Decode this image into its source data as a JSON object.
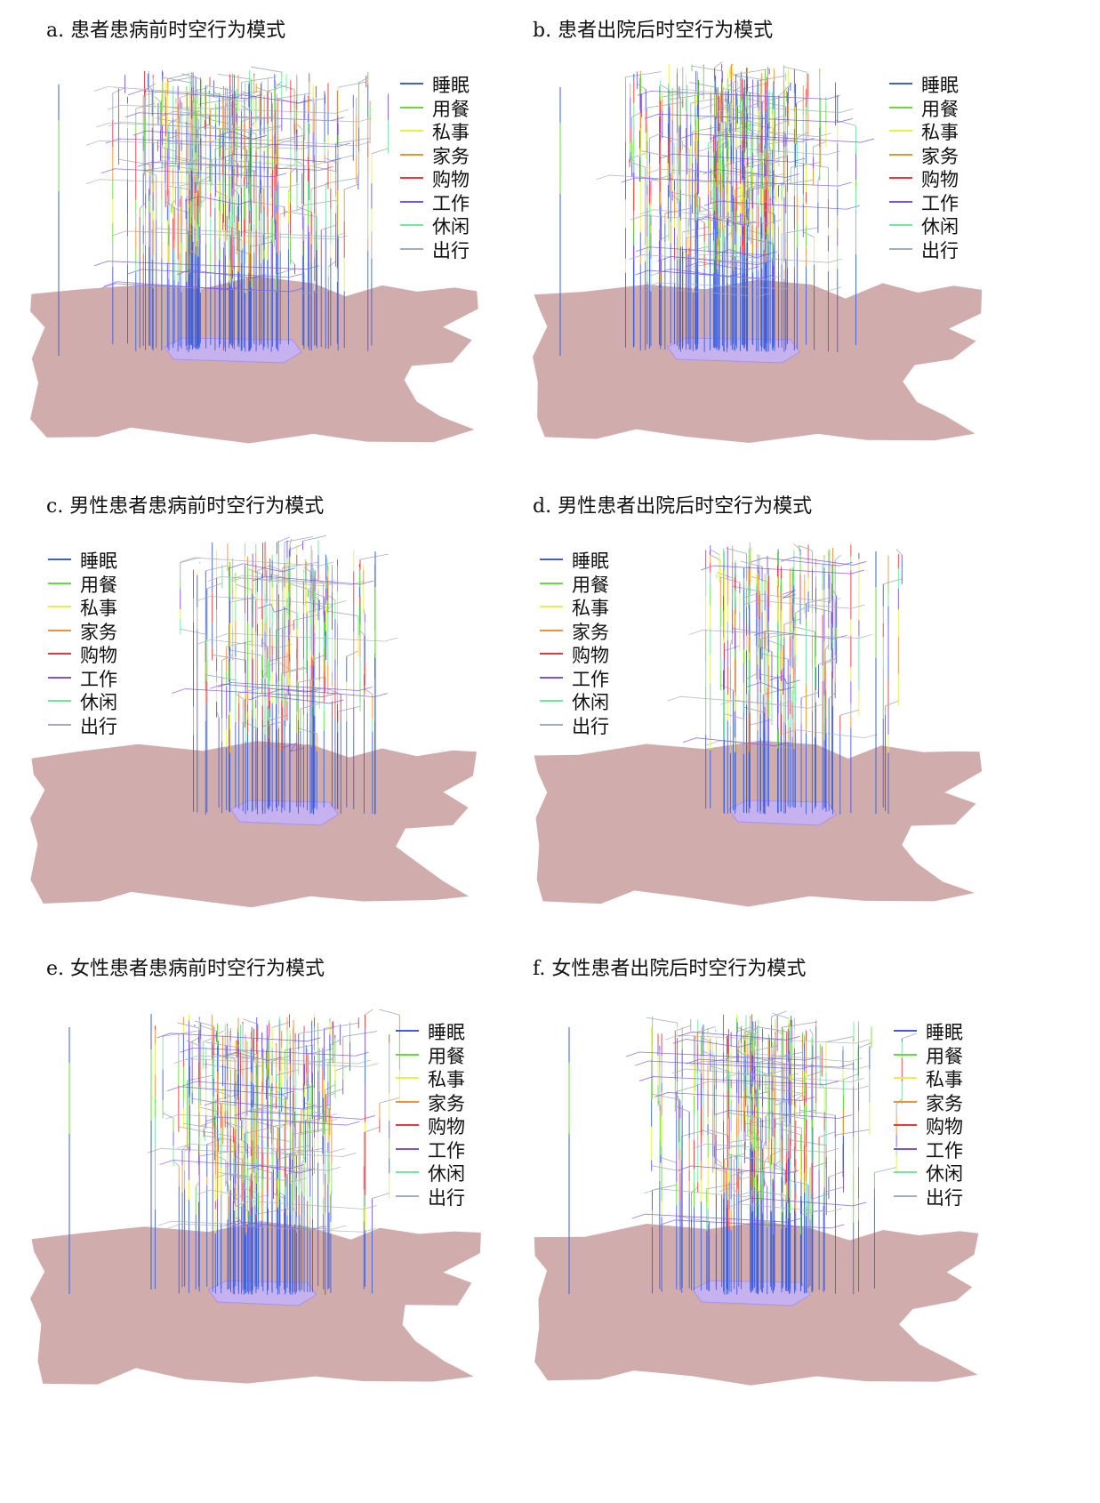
{
  "legend_items": [
    {
      "label": "睡眠",
      "color": "#3f5fd9"
    },
    {
      "label": "用餐",
      "color": "#64dc3c"
    },
    {
      "label": "私事",
      "color": "#e6f04a"
    },
    {
      "label": "家务",
      "color": "#f0913a"
    },
    {
      "label": "购物",
      "color": "#e8383c"
    },
    {
      "label": "工作",
      "color": "#7b52e6"
    },
    {
      "label": "休闲",
      "color": "#6ee89a"
    },
    {
      "label": "出行",
      "color": "#a5adb8"
    }
  ],
  "map_color": "#d1acad",
  "base_color": "#a98cf0",
  "panels": [
    {
      "title": "a. 患者患病前时空行为模式"
    },
    {
      "title": "b. 患者出院后时空行为模式"
    },
    {
      "title": "c. 男性患者患病前时空行为模式"
    },
    {
      "title": "d. 男性患者出院后时空行为模式"
    },
    {
      "title": "e. 女性患者患病前时空行为模式"
    },
    {
      "title": "f. 女性患者出院后时空行为模式"
    }
  ]
}
